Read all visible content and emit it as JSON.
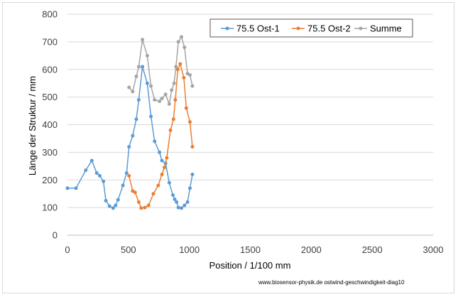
{
  "chart_data": {
    "type": "scatter",
    "title": "",
    "xlabel": "Position  /  1/100 mm",
    "ylabel": "Länge der Struktur / mm",
    "xlim": [
      0,
      3000
    ],
    "ylim": [
      0,
      800
    ],
    "xticks": [
      0,
      500,
      1000,
      1500,
      2000,
      2500,
      3000
    ],
    "yticks": [
      0,
      100,
      200,
      300,
      400,
      500,
      600,
      700,
      800
    ],
    "grid": "horizontal",
    "legend_position": "top-right",
    "series": [
      {
        "name": "75.5 Ost-1",
        "color": "#5b9bd5",
        "points": [
          [
            0,
            170
          ],
          [
            70,
            170
          ],
          [
            150,
            235
          ],
          [
            200,
            270
          ],
          [
            240,
            225
          ],
          [
            265,
            215
          ],
          [
            295,
            195
          ],
          [
            315,
            125
          ],
          [
            345,
            105
          ],
          [
            375,
            98
          ],
          [
            395,
            108
          ],
          [
            415,
            128
          ],
          [
            455,
            180
          ],
          [
            485,
            225
          ],
          [
            505,
            320
          ],
          [
            535,
            360
          ],
          [
            565,
            420
          ],
          [
            585,
            490
          ],
          [
            615,
            610
          ],
          [
            655,
            550
          ],
          [
            685,
            430
          ],
          [
            715,
            340
          ],
          [
            755,
            300
          ],
          [
            775,
            270
          ],
          [
            805,
            260
          ],
          [
            835,
            190
          ],
          [
            865,
            145
          ],
          [
            880,
            130
          ],
          [
            895,
            120
          ],
          [
            910,
            100
          ],
          [
            935,
            98
          ],
          [
            960,
            108
          ],
          [
            985,
            120
          ],
          [
            1005,
            170
          ],
          [
            1025,
            220
          ]
        ]
      },
      {
        "name": "75.5 Ost-2",
        "color": "#ed7d31",
        "points": [
          [
            505,
            215
          ],
          [
            535,
            160
          ],
          [
            555,
            155
          ],
          [
            585,
            120
          ],
          [
            605,
            98
          ],
          [
            635,
            100
          ],
          [
            665,
            108
          ],
          [
            705,
            150
          ],
          [
            745,
            180
          ],
          [
            775,
            220
          ],
          [
            795,
            245
          ],
          [
            815,
            280
          ],
          [
            845,
            380
          ],
          [
            870,
            420
          ],
          [
            885,
            490
          ],
          [
            905,
            600
          ],
          [
            925,
            620
          ],
          [
            955,
            570
          ],
          [
            975,
            460
          ],
          [
            1005,
            410
          ],
          [
            1025,
            320
          ]
        ]
      },
      {
        "name": "Summe",
        "color": "#a5a5a5",
        "points": [
          [
            505,
            535
          ],
          [
            535,
            520
          ],
          [
            565,
            575
          ],
          [
            585,
            610
          ],
          [
            615,
            708
          ],
          [
            655,
            650
          ],
          [
            685,
            540
          ],
          [
            715,
            490
          ],
          [
            755,
            485
          ],
          [
            775,
            495
          ],
          [
            805,
            510
          ],
          [
            835,
            475
          ],
          [
            855,
            525
          ],
          [
            875,
            550
          ],
          [
            890,
            610
          ],
          [
            910,
            700
          ],
          [
            935,
            718
          ],
          [
            960,
            680
          ],
          [
            985,
            585
          ],
          [
            1005,
            580
          ],
          [
            1025,
            540
          ]
        ]
      }
    ]
  },
  "footer": {
    "source": "www.biosensor-physik.de  ostwind-geschwindigkeit-diag10"
  }
}
